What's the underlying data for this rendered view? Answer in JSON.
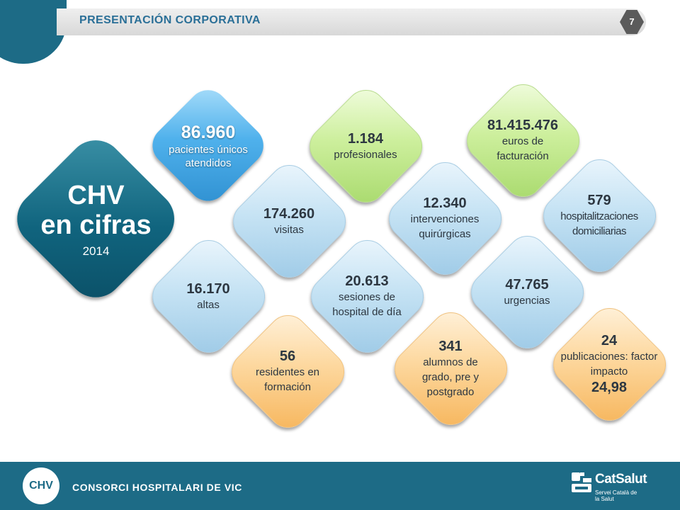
{
  "header": {
    "title": "PRESENTACIÓN CORPORATIVA",
    "page_number": "7"
  },
  "main_block": {
    "title_line1": "CHV",
    "title_line2": "en cifras",
    "year": "2014"
  },
  "stats": [
    {
      "value": "86.960",
      "label": "pacientes únicos atendidos",
      "color": "#4fb1ec"
    },
    {
      "value": "1.184",
      "label": "profesionales",
      "color": "#cdef9d"
    },
    {
      "value": "81.415.476",
      "label": "euros de facturación",
      "color": "#cdef9d"
    },
    {
      "value": "174.260",
      "label": "visitas",
      "color": "#c6e3f4"
    },
    {
      "value": "12.340",
      "label": "intervenciones quirúrgicas",
      "color": "#c6e3f4"
    },
    {
      "value": "579",
      "label": "hospitalitzaciones domiciliarias",
      "color": "#c6e3f4"
    },
    {
      "value": "16.170",
      "label": "altas",
      "color": "#c6e3f4"
    },
    {
      "value": "20.613",
      "label": "sesiones de hospital de día",
      "color": "#c6e3f4"
    },
    {
      "value": "47.765",
      "label": "urgencias",
      "color": "#c6e3f4"
    },
    {
      "value": "56",
      "label": "residentes en formación",
      "color": "#fdd89f"
    },
    {
      "value": "341",
      "label": "alumnos de grado, pre y postgrado",
      "color": "#fdd89f"
    },
    {
      "value": "24",
      "label": "publicaciones: factor impacto",
      "extra": "24,98",
      "color": "#fdd89f"
    }
  ],
  "footer": {
    "logo_text": "CHV",
    "organization": "CONSORCI HOSPITALARI DE VIC",
    "catsalut_name": "CatSalut",
    "catsalut_sub": "Servei Català de la Salut"
  }
}
